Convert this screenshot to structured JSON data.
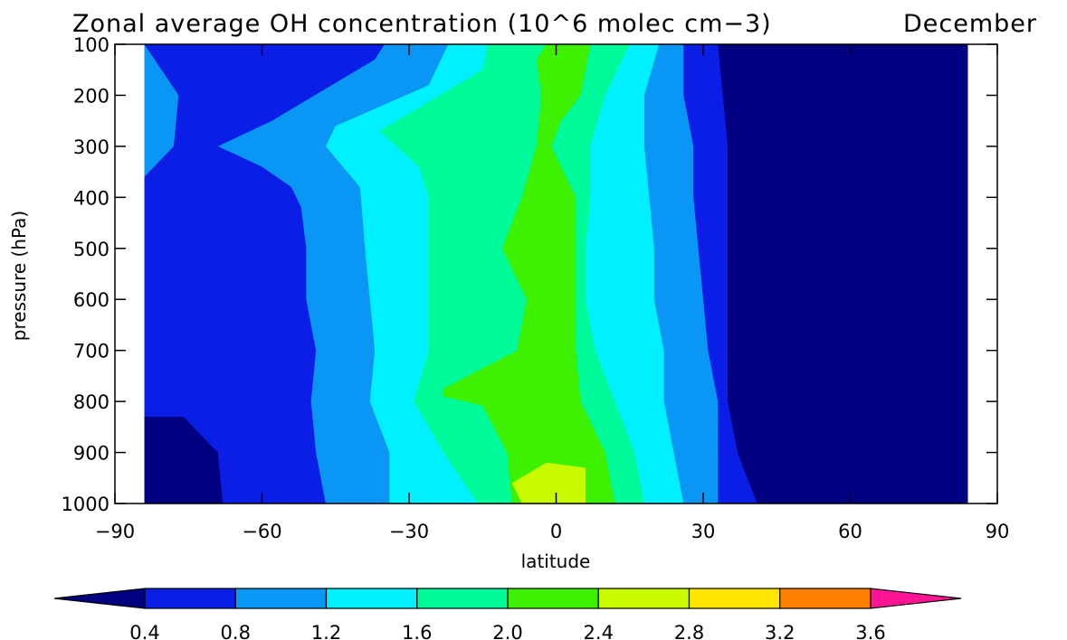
{
  "chart_data": {
    "type": "heatmap",
    "subtype": "filled-contour",
    "title": "Zonal average OH concentration (10^6 molec cm−3)",
    "title_right": "December",
    "xlabel": "latitude",
    "ylabel": "pressure (hPa)",
    "xlim": [
      -90,
      90
    ],
    "ylim": [
      1000,
      100
    ],
    "x_ticks": [
      -90,
      -60,
      -30,
      0,
      30,
      60,
      90
    ],
    "x_tick_labels": [
      "−90",
      "−60",
      "−30",
      "0",
      "30",
      "60",
      "90"
    ],
    "y_ticks": [
      100,
      200,
      300,
      400,
      500,
      600,
      700,
      800,
      900,
      1000
    ],
    "y_tick_labels": [
      "100",
      "200",
      "300",
      "400",
      "500",
      "600",
      "700",
      "800",
      "900",
      "1000"
    ],
    "data_lat_range": [
      -84,
      84
    ],
    "colorbar": {
      "levels": [
        0.4,
        0.8,
        1.2,
        1.6,
        2.0,
        2.4,
        2.8,
        3.2,
        3.6
      ],
      "level_labels": [
        "0.4",
        "0.8",
        "1.2",
        "1.6",
        "2.0",
        "2.4",
        "2.8",
        "3.2",
        "3.6"
      ],
      "colors": [
        "#000080",
        "#0a1ee6",
        "#0a96f5",
        "#00f0ff",
        "#00fa9a",
        "#3cf000",
        "#c8fa00",
        "#ffe600",
        "#ff8000",
        "#ff1493"
      ],
      "extend": "both"
    },
    "contour_boundaries": [
      {
        "lower": 0.4,
        "path": [
          [
            -84,
            100
          ],
          [
            -77,
            200
          ],
          [
            -78,
            300
          ],
          [
            -84,
            360
          ],
          [
            -84,
            1000
          ],
          [
            -68,
            1000
          ],
          [
            -69,
            900
          ],
          [
            -76,
            830
          ],
          [
            -84,
            830
          ]
        ]
      },
      {
        "lower": 0.8,
        "path": [
          [
            -84,
            100
          ],
          [
            -35,
            100
          ],
          [
            -37,
            130
          ],
          [
            -58,
            250
          ],
          [
            -69,
            300
          ],
          [
            -60,
            340
          ],
          [
            -54,
            380
          ],
          [
            -52,
            420
          ],
          [
            -51,
            500
          ],
          [
            -51,
            600
          ],
          [
            -49,
            700
          ],
          [
            -50,
            800
          ],
          [
            -49,
            900
          ],
          [
            -47,
            1000
          ],
          [
            -84,
            1000
          ]
        ]
      },
      {
        "lower": 1.2,
        "path": [
          [
            -84,
            100
          ],
          [
            -22,
            100
          ],
          [
            -26,
            180
          ],
          [
            -45,
            260
          ],
          [
            -47,
            300
          ],
          [
            -40,
            380
          ],
          [
            -39,
            500
          ],
          [
            -38,
            600
          ],
          [
            -37,
            700
          ],
          [
            -38,
            800
          ],
          [
            -34,
            900
          ],
          [
            -34,
            1000
          ],
          [
            -84,
            1000
          ]
        ]
      },
      {
        "lower": 1.6,
        "path": [
          [
            -84,
            100
          ],
          [
            -14,
            100
          ],
          [
            -15,
            150
          ],
          [
            -36,
            270
          ],
          [
            -28,
            340
          ],
          [
            -26,
            400
          ],
          [
            -26,
            500
          ],
          [
            -26,
            700
          ],
          [
            -29,
            800
          ],
          [
            -23,
            900
          ],
          [
            -16,
            1000
          ],
          [
            -84,
            1000
          ]
        ]
      },
      {
        "lower": 2.0,
        "path": [
          [
            -84,
            100
          ],
          [
            -2,
            100
          ],
          [
            -4,
            130
          ],
          [
            -3,
            200
          ],
          [
            -4,
            300
          ],
          [
            -7,
            400
          ],
          [
            -11,
            500
          ],
          [
            -6,
            600
          ],
          [
            -8,
            700
          ],
          [
            -23,
            775
          ],
          [
            -23,
            790
          ],
          [
            -15,
            808
          ],
          [
            -10,
            900
          ],
          [
            -9,
            1000
          ],
          [
            -84,
            1000
          ]
        ]
      },
      {
        "lower": 2.4,
        "path": [
          [
            -84,
            100
          ],
          [
            84,
            100
          ],
          [
            84,
            1000
          ],
          [
            6,
            1000
          ],
          [
            -2,
            920
          ],
          [
            -7,
            1000
          ],
          [
            -84,
            1000
          ]
        ]
      }
    ],
    "contour_boundaries_right": [
      {
        "upper": 2.4,
        "path": [
          [
            -2,
            100
          ],
          [
            1,
            130
          ],
          [
            2,
            200
          ],
          [
            -1,
            300
          ],
          [
            0,
            420
          ],
          [
            2,
            500
          ],
          [
            -2,
            600
          ],
          [
            -3,
            700
          ],
          [
            -1,
            800
          ],
          [
            5,
            900
          ],
          [
            12,
            1000
          ]
        ]
      },
      {
        "upper": 2.0,
        "path": [
          [
            7,
            100
          ],
          [
            5,
            200
          ],
          [
            1,
            250
          ],
          [
            -1,
            300
          ],
          [
            4,
            400
          ],
          [
            4,
            500
          ],
          [
            4,
            600
          ],
          [
            4,
            700
          ],
          [
            5,
            800
          ],
          [
            10,
            900
          ],
          [
            12,
            1000
          ]
        ]
      },
      {
        "upper": 1.6,
        "path": [
          [
            15,
            100
          ],
          [
            10,
            200
          ],
          [
            7,
            300
          ],
          [
            7,
            400
          ],
          [
            6,
            500
          ],
          [
            6,
            600
          ],
          [
            8,
            700
          ],
          [
            12,
            800
          ],
          [
            16,
            900
          ],
          [
            18,
            1000
          ]
        ]
      },
      {
        "upper": 1.2,
        "path": [
          [
            21,
            100
          ],
          [
            18,
            200
          ],
          [
            18,
            300
          ],
          [
            19,
            400
          ],
          [
            20,
            500
          ],
          [
            20,
            600
          ],
          [
            22,
            700
          ],
          [
            22,
            800
          ],
          [
            24,
            900
          ],
          [
            26,
            1000
          ]
        ]
      },
      {
        "upper": 0.8,
        "path": [
          [
            26,
            100
          ],
          [
            26,
            200
          ],
          [
            28,
            300
          ],
          [
            28,
            400
          ],
          [
            29,
            500
          ],
          [
            30,
            600
          ],
          [
            31,
            700
          ],
          [
            33,
            800
          ],
          [
            33,
            900
          ],
          [
            33,
            1000
          ]
        ]
      },
      {
        "upper": 0.4,
        "path": [
          [
            33,
            100
          ],
          [
            34,
            200
          ],
          [
            35,
            300
          ],
          [
            35,
            400
          ],
          [
            35,
            500
          ],
          [
            35,
            600
          ],
          [
            35,
            700
          ],
          [
            35,
            800
          ],
          [
            37,
            900
          ],
          [
            41,
            1000
          ]
        ]
      }
    ]
  }
}
